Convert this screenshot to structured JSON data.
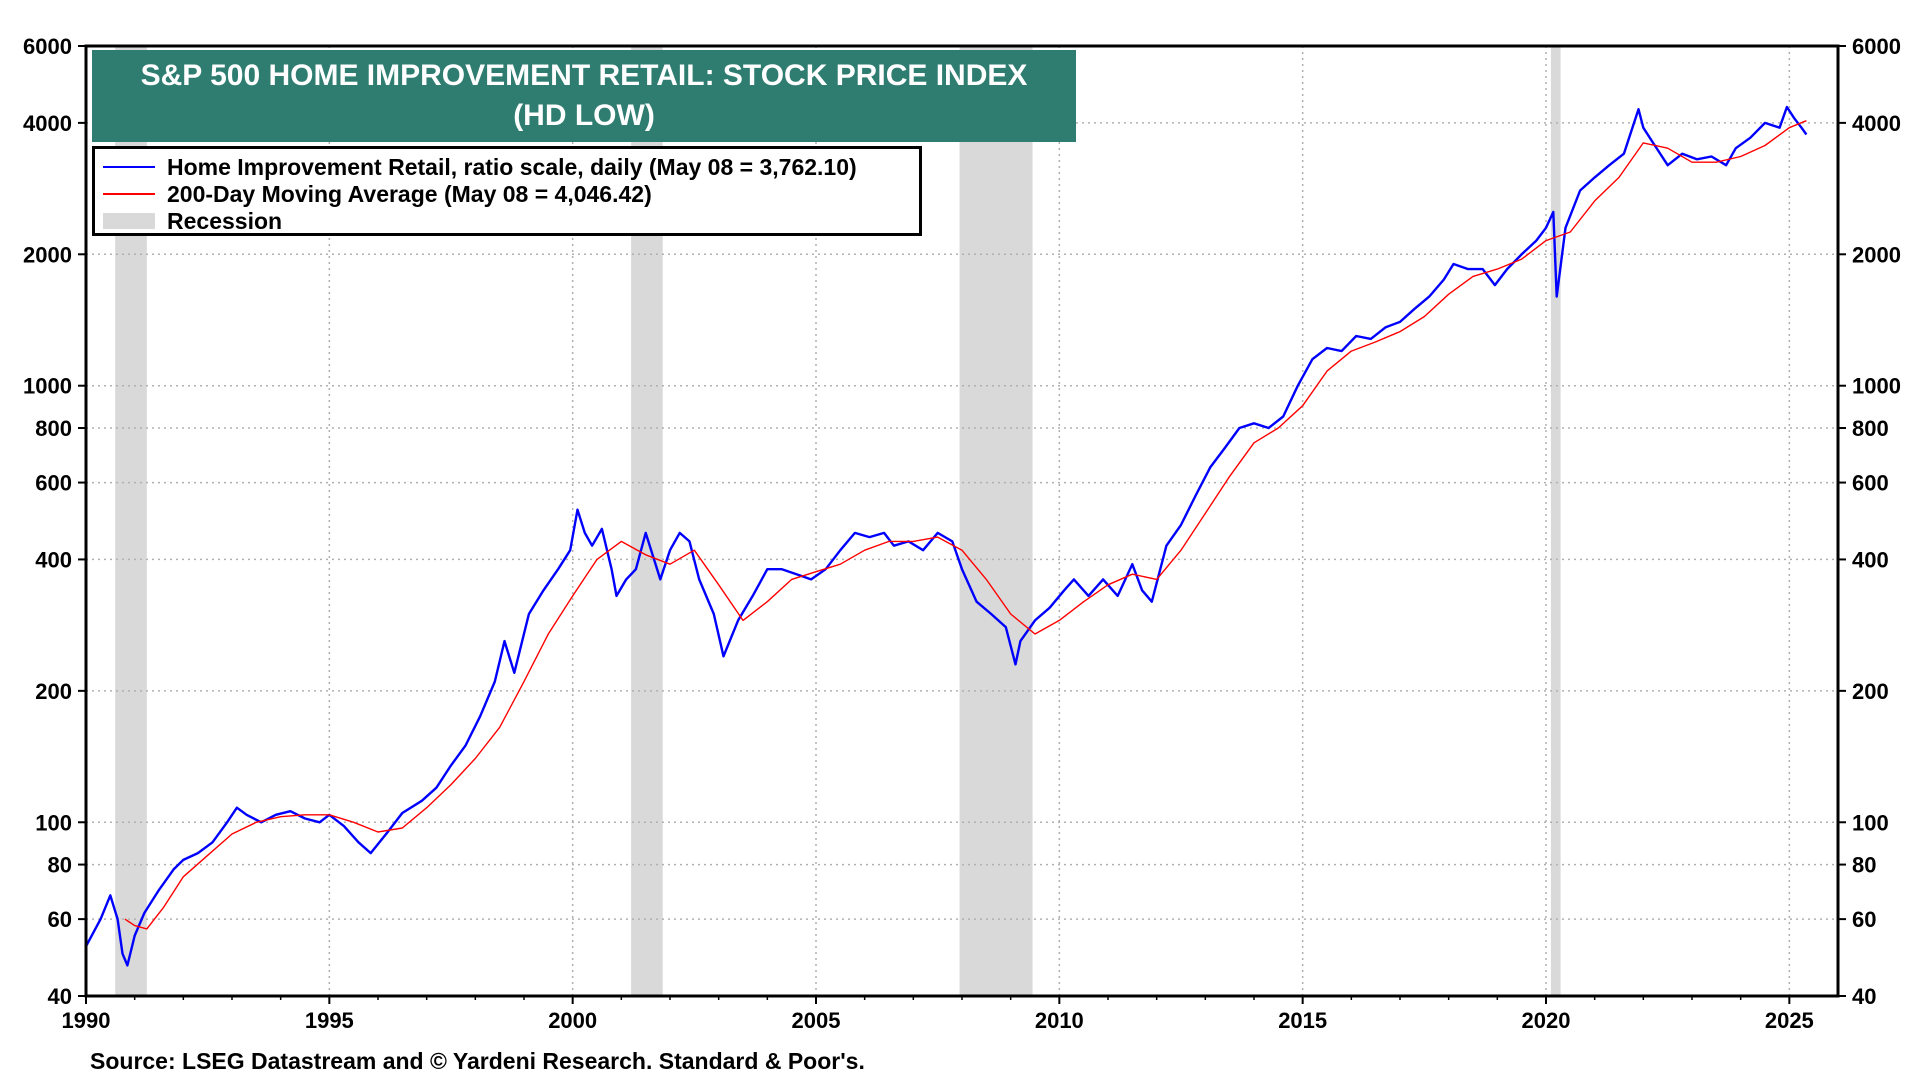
{
  "chart_data": {
    "type": "line",
    "title": "S&P 500 HOME IMPROVEMENT RETAIL: STOCK PRICE INDEX",
    "subtitle": "(HD LOW)",
    "y_scale": "log",
    "ylim": [
      40,
      6000
    ],
    "xlim": [
      1990,
      2026
    ],
    "y_ticks": [
      40,
      60,
      80,
      100,
      200,
      400,
      600,
      800,
      1000,
      2000,
      4000,
      6000
    ],
    "x_ticks": [
      1990,
      1995,
      2000,
      2005,
      2010,
      2015,
      2020,
      2025
    ],
    "recessions": [
      [
        1990.6,
        1991.25
      ],
      [
        2001.2,
        2001.85
      ],
      [
        2007.95,
        2009.45
      ],
      [
        2020.1,
        2020.3
      ]
    ],
    "series": [
      {
        "name": "Home Improvement Retail, ratio scale, daily (May 08 = 3,762.10)",
        "color": "#0000ff",
        "x": [
          1990.0,
          1990.3,
          1990.5,
          1990.65,
          1990.75,
          1990.85,
          1991.0,
          1991.2,
          1991.5,
          1991.8,
          1992.0,
          1992.3,
          1992.6,
          1992.9,
          1993.1,
          1993.3,
          1993.6,
          1993.9,
          1994.2,
          1994.5,
          1994.8,
          1995.0,
          1995.3,
          1995.6,
          1995.85,
          1996.2,
          1996.5,
          1996.9,
          1997.2,
          1997.5,
          1997.8,
          1998.1,
          1998.4,
          1998.6,
          1998.8,
          1999.1,
          1999.4,
          1999.7,
          1999.95,
          2000.1,
          2000.25,
          2000.4,
          2000.6,
          2000.8,
          2000.9,
          2001.1,
          2001.3,
          2001.5,
          2001.8,
          2002.0,
          2002.2,
          2002.4,
          2002.6,
          2002.9,
          2003.1,
          2003.4,
          2003.7,
          2004.0,
          2004.3,
          2004.6,
          2004.9,
          2005.2,
          2005.5,
          2005.8,
          2006.1,
          2006.4,
          2006.6,
          2006.9,
          2007.2,
          2007.5,
          2007.8,
          2008.0,
          2008.3,
          2008.6,
          2008.9,
          2009.1,
          2009.2,
          2009.5,
          2009.8,
          2010.1,
          2010.3,
          2010.6,
          2010.9,
          2011.2,
          2011.5,
          2011.7,
          2011.9,
          2012.2,
          2012.5,
          2012.8,
          2013.1,
          2013.4,
          2013.7,
          2014.0,
          2014.3,
          2014.6,
          2014.9,
          2015.2,
          2015.5,
          2015.8,
          2016.1,
          2016.4,
          2016.7,
          2017.0,
          2017.3,
          2017.6,
          2017.9,
          2018.1,
          2018.4,
          2018.7,
          2018.95,
          2019.2,
          2019.5,
          2019.8,
          2020.0,
          2020.15,
          2020.22,
          2020.4,
          2020.7,
          2021.0,
          2021.3,
          2021.6,
          2021.9,
          2022.0,
          2022.2,
          2022.5,
          2022.8,
          2023.1,
          2023.4,
          2023.7,
          2023.9,
          2024.2,
          2024.5,
          2024.8,
          2024.95,
          2025.1,
          2025.25,
          2025.35
        ],
        "y": [
          52,
          60,
          68,
          60,
          50,
          47,
          55,
          62,
          70,
          78,
          82,
          85,
          90,
          100,
          108,
          104,
          100,
          104,
          106,
          102,
          100,
          104,
          98,
          90,
          85,
          95,
          105,
          112,
          120,
          135,
          150,
          175,
          210,
          260,
          220,
          300,
          340,
          380,
          420,
          520,
          460,
          430,
          470,
          380,
          330,
          360,
          380,
          460,
          360,
          420,
          460,
          440,
          360,
          300,
          240,
          290,
          330,
          380,
          380,
          370,
          360,
          380,
          420,
          460,
          450,
          460,
          430,
          440,
          420,
          460,
          440,
          380,
          320,
          300,
          280,
          230,
          260,
          290,
          310,
          340,
          360,
          330,
          360,
          330,
          390,
          340,
          320,
          430,
          480,
          560,
          650,
          720,
          800,
          820,
          800,
          850,
          1000,
          1150,
          1220,
          1200,
          1300,
          1280,
          1360,
          1400,
          1500,
          1600,
          1750,
          1900,
          1850,
          1850,
          1700,
          1850,
          2000,
          2150,
          2300,
          2500,
          1600,
          2300,
          2800,
          3000,
          3200,
          3400,
          4300,
          3900,
          3600,
          3200,
          3400,
          3300,
          3350,
          3200,
          3500,
          3700,
          4000,
          3900,
          4350,
          4100,
          3900,
          3762
        ]
      },
      {
        "name": "200-Day Moving Average (May 08 = 4,046.42)",
        "color": "#ff0000",
        "x": [
          1990.8,
          1991.0,
          1991.25,
          1991.6,
          1992.0,
          1992.5,
          1993.0,
          1993.5,
          1994.0,
          1994.5,
          1995.0,
          1995.5,
          1996.0,
          1996.5,
          1997.0,
          1997.5,
          1998.0,
          1998.5,
          1999.0,
          1999.5,
          2000.0,
          2000.5,
          2001.0,
          2001.5,
          2002.0,
          2002.5,
          2003.0,
          2003.5,
          2004.0,
          2004.5,
          2005.0,
          2005.5,
          2006.0,
          2006.5,
          2007.0,
          2007.5,
          2008.0,
          2008.5,
          2009.0,
          2009.5,
          2010.0,
          2010.5,
          2011.0,
          2011.5,
          2012.0,
          2012.5,
          2013.0,
          2013.5,
          2014.0,
          2014.5,
          2015.0,
          2015.5,
          2016.0,
          2016.5,
          2017.0,
          2017.5,
          2018.0,
          2018.5,
          2019.0,
          2019.5,
          2020.0,
          2020.5,
          2021.0,
          2021.5,
          2022.0,
          2022.5,
          2023.0,
          2023.5,
          2024.0,
          2024.5,
          2025.0,
          2025.35
        ],
        "y": [
          60,
          58,
          57,
          64,
          75,
          84,
          94,
          100,
          103,
          104,
          104,
          100,
          95,
          97,
          108,
          122,
          140,
          165,
          210,
          270,
          330,
          400,
          440,
          410,
          390,
          420,
          350,
          290,
          320,
          360,
          375,
          390,
          420,
          440,
          440,
          450,
          420,
          360,
          300,
          270,
          290,
          320,
          350,
          370,
          360,
          420,
          510,
          620,
          740,
          800,
          900,
          1080,
          1200,
          1260,
          1330,
          1440,
          1620,
          1780,
          1850,
          1950,
          2150,
          2250,
          2650,
          3000,
          3600,
          3500,
          3250,
          3250,
          3350,
          3550,
          3900,
          4046
        ]
      }
    ],
    "legend": {
      "blue": "Home Improvement Retail, ratio scale, daily (May 08 = 3,762.10)",
      "red": "200-Day Moving Average (May 08 = 4,046.42)",
      "recession": "Recession"
    },
    "source": "Source: LSEG Datastream and © Yardeni Research. Standard & Poor's."
  },
  "colors": {
    "title_bg": "#2e7d70",
    "price_line": "#0000ff",
    "ma_line": "#ff0000",
    "recession": "#d9d9d9"
  }
}
